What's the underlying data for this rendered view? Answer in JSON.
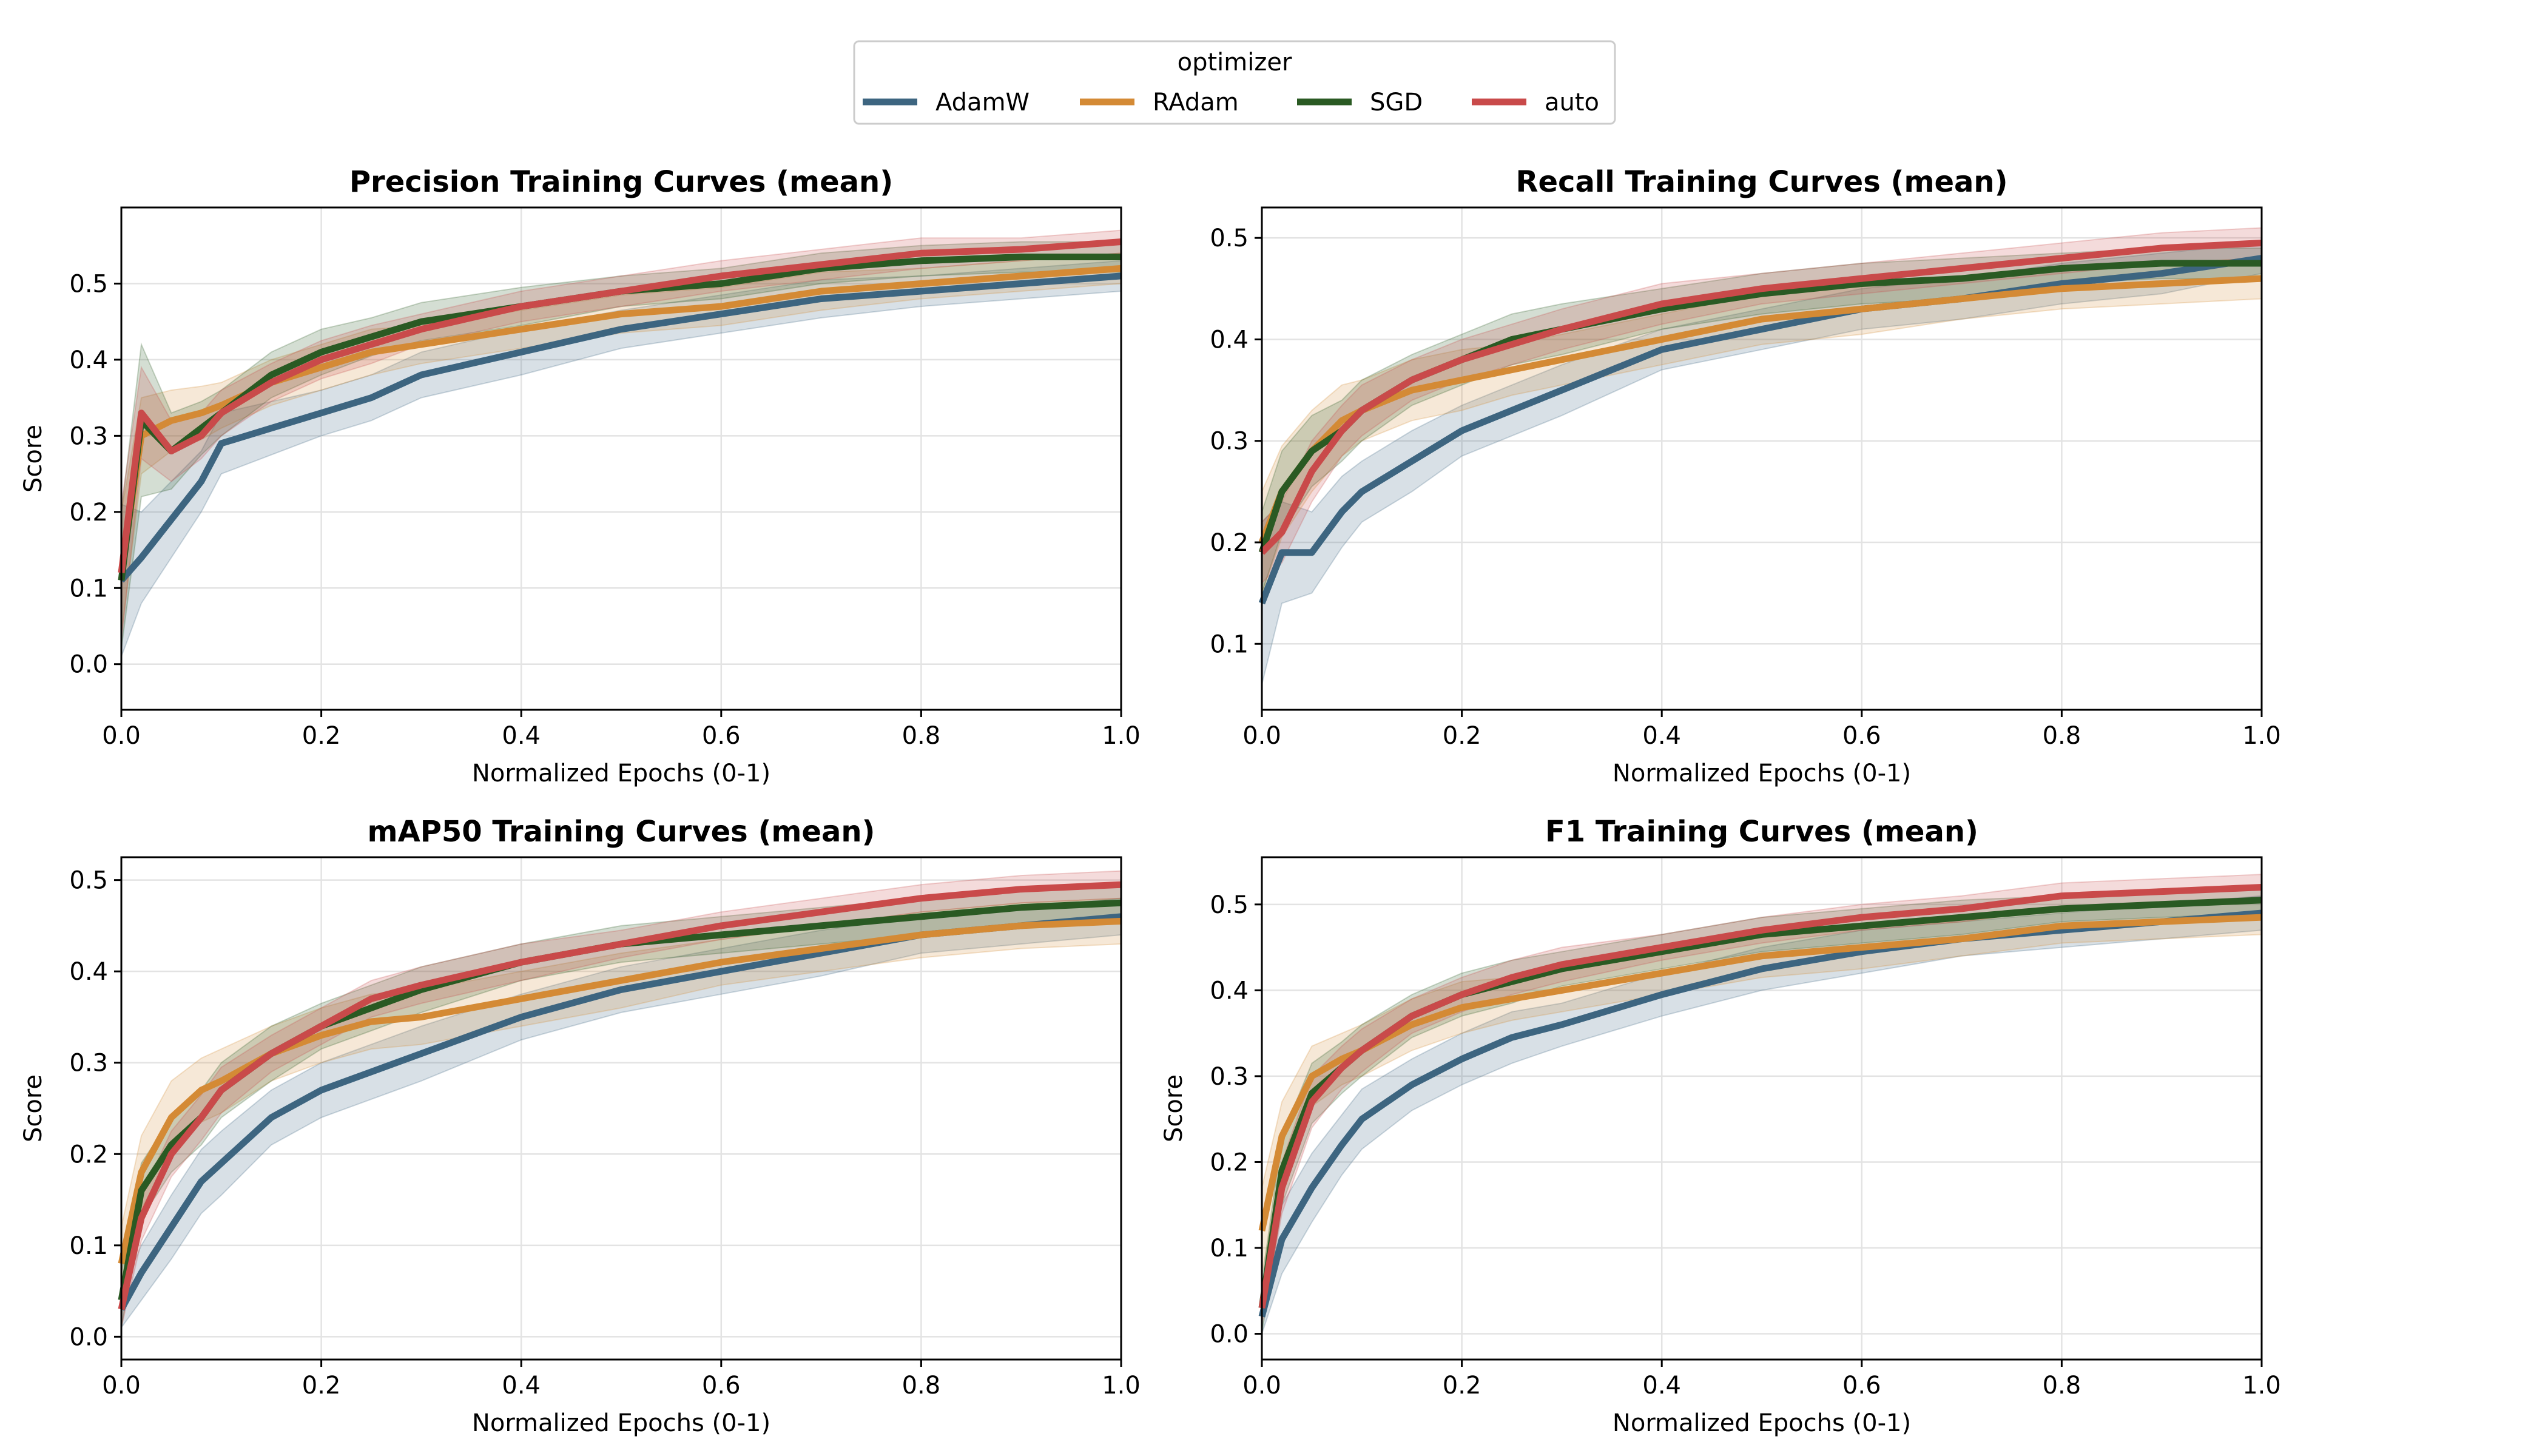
{
  "legend": {
    "title": "optimizer",
    "entries": [
      {
        "name": "AdamW",
        "color": "#3d6580"
      },
      {
        "name": "RAdam",
        "color": "#d48a35"
      },
      {
        "name": "SGD",
        "color": "#2a5a23"
      },
      {
        "name": "auto",
        "color": "#c94a4a"
      }
    ]
  },
  "chart_data": [
    {
      "type": "line",
      "title": "Precision Training Curves (mean)",
      "xlabel": "Normalized Epochs (0-1)",
      "ylabel": "Score",
      "xlim": [
        0,
        1
      ],
      "ylim": [
        -0.06,
        0.6
      ],
      "xticks": [
        0,
        0.2,
        0.4,
        0.6,
        0.8,
        1
      ],
      "xtick_labels": [
        "0.0",
        "0.2",
        "0.4",
        "0.6",
        "0.8",
        "1.0"
      ],
      "yticks": [
        0,
        0.1,
        0.2,
        0.3,
        0.4,
        0.5
      ],
      "ytick_labels": [
        "0.0",
        "0.1",
        "0.2",
        "0.3",
        "0.4",
        "0.5"
      ],
      "grid": true,
      "band": "shaded spread around mean",
      "series": [
        {
          "name": "AdamW",
          "x": [
            0,
            0.02,
            0.05,
            0.08,
            0.1,
            0.15,
            0.2,
            0.25,
            0.3,
            0.4,
            0.5,
            0.6,
            0.7,
            0.8,
            0.9,
            1.0
          ],
          "y": [
            0.11,
            0.14,
            0.19,
            0.24,
            0.29,
            0.31,
            0.33,
            0.35,
            0.38,
            0.41,
            0.44,
            0.46,
            0.48,
            0.49,
            0.5,
            0.51
          ],
          "spread": [
            0.1,
            0.06,
            0.05,
            0.04,
            0.04,
            0.035,
            0.03,
            0.03,
            0.03,
            0.03,
            0.025,
            0.025,
            0.025,
            0.02,
            0.02,
            0.02
          ]
        },
        {
          "name": "RAdam",
          "x": [
            0,
            0.02,
            0.05,
            0.08,
            0.1,
            0.15,
            0.2,
            0.25,
            0.3,
            0.4,
            0.5,
            0.6,
            0.7,
            0.8,
            0.9,
            1.0
          ],
          "y": [
            0.12,
            0.3,
            0.32,
            0.33,
            0.34,
            0.37,
            0.39,
            0.41,
            0.42,
            0.44,
            0.46,
            0.47,
            0.49,
            0.5,
            0.51,
            0.52
          ],
          "spread": [
            0.08,
            0.05,
            0.04,
            0.035,
            0.03,
            0.03,
            0.03,
            0.03,
            0.025,
            0.025,
            0.025,
            0.025,
            0.025,
            0.02,
            0.02,
            0.02
          ]
        },
        {
          "name": "SGD",
          "x": [
            0,
            0.02,
            0.05,
            0.08,
            0.1,
            0.15,
            0.2,
            0.25,
            0.3,
            0.4,
            0.5,
            0.6,
            0.7,
            0.8,
            0.9,
            1.0
          ],
          "y": [
            0.11,
            0.32,
            0.28,
            0.31,
            0.33,
            0.38,
            0.41,
            0.43,
            0.45,
            0.47,
            0.49,
            0.5,
            0.52,
            0.53,
            0.535,
            0.535
          ],
          "spread": [
            0.09,
            0.1,
            0.05,
            0.035,
            0.03,
            0.03,
            0.03,
            0.025,
            0.025,
            0.025,
            0.02,
            0.02,
            0.02,
            0.02,
            0.02,
            0.02
          ]
        },
        {
          "name": "auto",
          "x": [
            0,
            0.02,
            0.05,
            0.08,
            0.1,
            0.15,
            0.2,
            0.25,
            0.3,
            0.4,
            0.5,
            0.6,
            0.7,
            0.8,
            0.9,
            1.0
          ],
          "y": [
            0.12,
            0.33,
            0.28,
            0.3,
            0.33,
            0.37,
            0.4,
            0.42,
            0.44,
            0.47,
            0.49,
            0.51,
            0.525,
            0.54,
            0.545,
            0.555
          ],
          "spread": [
            0.09,
            0.06,
            0.04,
            0.03,
            0.03,
            0.025,
            0.025,
            0.025,
            0.02,
            0.02,
            0.02,
            0.02,
            0.02,
            0.02,
            0.015,
            0.015
          ]
        }
      ]
    },
    {
      "type": "line",
      "title": "Recall Training Curves (mean)",
      "xlabel": "Normalized Epochs (0-1)",
      "ylabel": "",
      "xlim": [
        0,
        1
      ],
      "ylim": [
        0.035,
        0.53
      ],
      "xticks": [
        0,
        0.2,
        0.4,
        0.6,
        0.8,
        1
      ],
      "xtick_labels": [
        "0.0",
        "0.2",
        "0.4",
        "0.6",
        "0.8",
        "1.0"
      ],
      "yticks": [
        0.1,
        0.2,
        0.3,
        0.4,
        0.5
      ],
      "ytick_labels": [
        "0.1",
        "0.2",
        "0.3",
        "0.4",
        "0.5"
      ],
      "grid": true,
      "band": "shaded spread around mean",
      "series": [
        {
          "name": "AdamW",
          "x": [
            0,
            0.02,
            0.05,
            0.08,
            0.1,
            0.15,
            0.2,
            0.25,
            0.3,
            0.4,
            0.5,
            0.6,
            0.7,
            0.8,
            0.9,
            1.0
          ],
          "y": [
            0.14,
            0.19,
            0.19,
            0.23,
            0.25,
            0.28,
            0.31,
            0.33,
            0.35,
            0.39,
            0.41,
            0.43,
            0.44,
            0.455,
            0.465,
            0.48
          ],
          "spread": [
            0.08,
            0.05,
            0.04,
            0.035,
            0.03,
            0.03,
            0.025,
            0.025,
            0.025,
            0.02,
            0.02,
            0.02,
            0.02,
            0.02,
            0.02,
            0.015
          ]
        },
        {
          "name": "RAdam",
          "x": [
            0,
            0.02,
            0.05,
            0.08,
            0.1,
            0.15,
            0.2,
            0.25,
            0.3,
            0.4,
            0.5,
            0.6,
            0.7,
            0.8,
            0.9,
            1.0
          ],
          "y": [
            0.2,
            0.25,
            0.29,
            0.32,
            0.33,
            0.35,
            0.36,
            0.37,
            0.38,
            0.4,
            0.42,
            0.43,
            0.44,
            0.45,
            0.455,
            0.46
          ],
          "spread": [
            0.05,
            0.045,
            0.04,
            0.035,
            0.03,
            0.03,
            0.03,
            0.025,
            0.025,
            0.025,
            0.025,
            0.025,
            0.02,
            0.02,
            0.02,
            0.02
          ]
        },
        {
          "name": "SGD",
          "x": [
            0,
            0.02,
            0.05,
            0.08,
            0.1,
            0.15,
            0.2,
            0.25,
            0.3,
            0.4,
            0.5,
            0.6,
            0.7,
            0.8,
            0.9,
            1.0
          ],
          "y": [
            0.19,
            0.25,
            0.29,
            0.31,
            0.33,
            0.36,
            0.38,
            0.4,
            0.41,
            0.43,
            0.445,
            0.455,
            0.46,
            0.47,
            0.475,
            0.475
          ],
          "spread": [
            0.04,
            0.04,
            0.035,
            0.03,
            0.03,
            0.025,
            0.025,
            0.025,
            0.025,
            0.02,
            0.02,
            0.02,
            0.02,
            0.015,
            0.015,
            0.015
          ]
        },
        {
          "name": "auto",
          "x": [
            0,
            0.02,
            0.05,
            0.08,
            0.1,
            0.15,
            0.2,
            0.25,
            0.3,
            0.4,
            0.5,
            0.6,
            0.7,
            0.8,
            0.9,
            1.0
          ],
          "y": [
            0.19,
            0.21,
            0.27,
            0.31,
            0.33,
            0.36,
            0.38,
            0.395,
            0.41,
            0.435,
            0.45,
            0.46,
            0.47,
            0.48,
            0.49,
            0.495
          ],
          "spread": [
            0.03,
            0.03,
            0.03,
            0.025,
            0.025,
            0.02,
            0.02,
            0.02,
            0.02,
            0.02,
            0.015,
            0.015,
            0.015,
            0.015,
            0.015,
            0.015
          ]
        }
      ]
    },
    {
      "type": "line",
      "title": "mAP50 Training Curves (mean)",
      "xlabel": "Normalized Epochs (0-1)",
      "ylabel": "Score",
      "xlim": [
        0,
        1
      ],
      "ylim": [
        -0.025,
        0.525
      ],
      "xticks": [
        0,
        0.2,
        0.4,
        0.6,
        0.8,
        1
      ],
      "xtick_labels": [
        "0.0",
        "0.2",
        "0.4",
        "0.6",
        "0.8",
        "1.0"
      ],
      "yticks": [
        0,
        0.1,
        0.2,
        0.3,
        0.4,
        0.5
      ],
      "ytick_labels": [
        "0.0",
        "0.1",
        "0.2",
        "0.3",
        "0.4",
        "0.5"
      ],
      "grid": true,
      "band": "shaded spread around mean",
      "series": [
        {
          "name": "AdamW",
          "x": [
            0,
            0.02,
            0.05,
            0.08,
            0.1,
            0.15,
            0.2,
            0.25,
            0.3,
            0.4,
            0.5,
            0.6,
            0.7,
            0.8,
            0.9,
            1.0
          ],
          "y": [
            0.03,
            0.07,
            0.12,
            0.17,
            0.19,
            0.24,
            0.27,
            0.29,
            0.31,
            0.35,
            0.38,
            0.4,
            0.42,
            0.44,
            0.45,
            0.46
          ],
          "spread": [
            0.02,
            0.03,
            0.035,
            0.035,
            0.035,
            0.03,
            0.03,
            0.03,
            0.03,
            0.025,
            0.025,
            0.025,
            0.025,
            0.02,
            0.02,
            0.02
          ]
        },
        {
          "name": "RAdam",
          "x": [
            0,
            0.02,
            0.05,
            0.08,
            0.1,
            0.15,
            0.2,
            0.25,
            0.3,
            0.4,
            0.5,
            0.6,
            0.7,
            0.8,
            0.9,
            1.0
          ],
          "y": [
            0.08,
            0.18,
            0.24,
            0.27,
            0.28,
            0.31,
            0.33,
            0.345,
            0.35,
            0.37,
            0.39,
            0.41,
            0.425,
            0.44,
            0.45,
            0.455
          ],
          "spread": [
            0.04,
            0.04,
            0.04,
            0.035,
            0.035,
            0.03,
            0.03,
            0.03,
            0.03,
            0.03,
            0.03,
            0.025,
            0.025,
            0.025,
            0.025,
            0.025
          ]
        },
        {
          "name": "SGD",
          "x": [
            0,
            0.02,
            0.05,
            0.08,
            0.1,
            0.15,
            0.2,
            0.25,
            0.3,
            0.4,
            0.5,
            0.6,
            0.7,
            0.8,
            0.9,
            1.0
          ],
          "y": [
            0.04,
            0.16,
            0.21,
            0.24,
            0.27,
            0.31,
            0.34,
            0.36,
            0.38,
            0.41,
            0.43,
            0.44,
            0.45,
            0.46,
            0.47,
            0.475
          ],
          "spread": [
            0.03,
            0.03,
            0.03,
            0.03,
            0.03,
            0.03,
            0.025,
            0.025,
            0.025,
            0.02,
            0.02,
            0.02,
            0.02,
            0.02,
            0.02,
            0.02
          ]
        },
        {
          "name": "auto",
          "x": [
            0,
            0.02,
            0.05,
            0.08,
            0.1,
            0.15,
            0.2,
            0.25,
            0.3,
            0.4,
            0.5,
            0.6,
            0.7,
            0.8,
            0.9,
            1.0
          ],
          "y": [
            0.03,
            0.13,
            0.2,
            0.24,
            0.27,
            0.31,
            0.34,
            0.37,
            0.385,
            0.41,
            0.43,
            0.45,
            0.465,
            0.48,
            0.49,
            0.495
          ],
          "spread": [
            0.02,
            0.025,
            0.025,
            0.025,
            0.025,
            0.02,
            0.02,
            0.02,
            0.02,
            0.02,
            0.015,
            0.015,
            0.015,
            0.015,
            0.015,
            0.015
          ]
        }
      ]
    },
    {
      "type": "line",
      "title": "F1 Training Curves (mean)",
      "xlabel": "Normalized Epochs (0-1)",
      "ylabel": "Score",
      "xlim": [
        0,
        1
      ],
      "ylim": [
        -0.03,
        0.555
      ],
      "xticks": [
        0,
        0.2,
        0.4,
        0.6,
        0.8,
        1
      ],
      "xtick_labels": [
        "0.0",
        "0.2",
        "0.4",
        "0.6",
        "0.8",
        "1.0"
      ],
      "yticks": [
        0,
        0.1,
        0.2,
        0.3,
        0.4,
        0.5
      ],
      "ytick_labels": [
        "0.0",
        "0.1",
        "0.2",
        "0.3",
        "0.4",
        "0.5"
      ],
      "grid": true,
      "band": "shaded spread around mean",
      "series": [
        {
          "name": "AdamW",
          "x": [
            0,
            0.02,
            0.05,
            0.08,
            0.1,
            0.15,
            0.2,
            0.25,
            0.3,
            0.4,
            0.5,
            0.6,
            0.7,
            0.8,
            0.9,
            1.0
          ],
          "y": [
            0.02,
            0.11,
            0.17,
            0.22,
            0.25,
            0.29,
            0.32,
            0.345,
            0.36,
            0.395,
            0.425,
            0.445,
            0.46,
            0.47,
            0.48,
            0.49
          ],
          "spread": [
            0.02,
            0.04,
            0.04,
            0.035,
            0.035,
            0.03,
            0.03,
            0.03,
            0.025,
            0.025,
            0.025,
            0.025,
            0.02,
            0.02,
            0.02,
            0.02
          ]
        },
        {
          "name": "RAdam",
          "x": [
            0,
            0.02,
            0.05,
            0.08,
            0.1,
            0.15,
            0.2,
            0.25,
            0.3,
            0.4,
            0.5,
            0.6,
            0.7,
            0.8,
            0.9,
            1.0
          ],
          "y": [
            0.12,
            0.23,
            0.3,
            0.32,
            0.33,
            0.36,
            0.38,
            0.39,
            0.4,
            0.42,
            0.44,
            0.45,
            0.46,
            0.475,
            0.48,
            0.485
          ],
          "spread": [
            0.05,
            0.04,
            0.035,
            0.03,
            0.03,
            0.03,
            0.03,
            0.025,
            0.025,
            0.025,
            0.025,
            0.025,
            0.02,
            0.02,
            0.02,
            0.02
          ]
        },
        {
          "name": "SGD",
          "x": [
            0,
            0.02,
            0.05,
            0.08,
            0.1,
            0.15,
            0.2,
            0.25,
            0.3,
            0.4,
            0.5,
            0.6,
            0.7,
            0.8,
            0.9,
            1.0
          ],
          "y": [
            0.03,
            0.19,
            0.28,
            0.31,
            0.33,
            0.37,
            0.395,
            0.41,
            0.425,
            0.445,
            0.465,
            0.475,
            0.485,
            0.495,
            0.5,
            0.505
          ],
          "spread": [
            0.03,
            0.04,
            0.035,
            0.03,
            0.03,
            0.025,
            0.025,
            0.025,
            0.02,
            0.02,
            0.02,
            0.02,
            0.02,
            0.015,
            0.015,
            0.015
          ]
        },
        {
          "name": "auto",
          "x": [
            0,
            0.02,
            0.05,
            0.08,
            0.1,
            0.15,
            0.2,
            0.25,
            0.3,
            0.4,
            0.5,
            0.6,
            0.7,
            0.8,
            0.9,
            1.0
          ],
          "y": [
            0.03,
            0.17,
            0.27,
            0.31,
            0.33,
            0.37,
            0.395,
            0.415,
            0.43,
            0.45,
            0.47,
            0.485,
            0.495,
            0.51,
            0.515,
            0.52
          ],
          "spread": [
            0.02,
            0.03,
            0.03,
            0.025,
            0.025,
            0.02,
            0.02,
            0.02,
            0.02,
            0.015,
            0.015,
            0.015,
            0.015,
            0.015,
            0.015,
            0.015
          ]
        }
      ]
    }
  ]
}
